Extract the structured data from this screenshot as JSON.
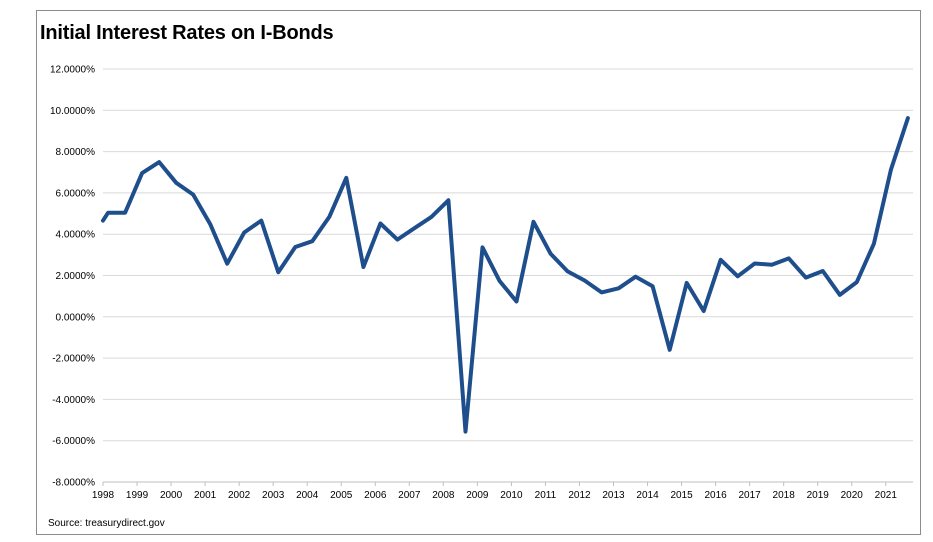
{
  "chart_data": {
    "type": "line",
    "title": "Initial Interest Rates on I-Bonds",
    "source": "Source: treasurydirect.gov",
    "xlabel": "",
    "ylabel": "",
    "ylim": [
      -0.08,
      0.12
    ],
    "xlim": [
      1998.0,
      2021.8
    ],
    "grid": true,
    "legend": "none",
    "colors": {
      "line": "#1f4e8c",
      "grid": "#d9d9d9",
      "axis": "#bfbfbf"
    },
    "y_ticks": [
      {
        "value": 0.12,
        "label": "12.0000%"
      },
      {
        "value": 0.1,
        "label": "10.0000%"
      },
      {
        "value": 0.08,
        "label": "8.0000%"
      },
      {
        "value": 0.06,
        "label": "6.0000%"
      },
      {
        "value": 0.04,
        "label": "4.0000%"
      },
      {
        "value": 0.02,
        "label": "2.0000%"
      },
      {
        "value": 0.0,
        "label": "0.0000%"
      },
      {
        "value": -0.02,
        "label": "-2.0000%"
      },
      {
        "value": -0.04,
        "label": "-4.0000%"
      },
      {
        "value": -0.06,
        "label": "-6.0000%"
      },
      {
        "value": -0.08,
        "label": "-8.0000%"
      }
    ],
    "x_ticks": [
      {
        "value": 1998,
        "label": "1998"
      },
      {
        "value": 1999,
        "label": "1999"
      },
      {
        "value": 2000,
        "label": "2000"
      },
      {
        "value": 2001,
        "label": "2001"
      },
      {
        "value": 2002,
        "label": "2002"
      },
      {
        "value": 2003,
        "label": "2003"
      },
      {
        "value": 2004,
        "label": "2004"
      },
      {
        "value": 2005,
        "label": "2005"
      },
      {
        "value": 2006,
        "label": "2006"
      },
      {
        "value": 2007,
        "label": "2007"
      },
      {
        "value": 2008,
        "label": "2008"
      },
      {
        "value": 2009,
        "label": "2009"
      },
      {
        "value": 2010,
        "label": "2010"
      },
      {
        "value": 2011,
        "label": "2011"
      },
      {
        "value": 2012,
        "label": "2012"
      },
      {
        "value": 2013,
        "label": "2013"
      },
      {
        "value": 2014,
        "label": "2014"
      },
      {
        "value": 2015,
        "label": "2015"
      },
      {
        "value": 2016,
        "label": "2016"
      },
      {
        "value": 2017,
        "label": "2017"
      },
      {
        "value": 2018,
        "label": "2018"
      },
      {
        "value": 2019,
        "label": "2019"
      },
      {
        "value": 2020,
        "label": "2020"
      },
      {
        "value": 2021,
        "label": "2021"
      }
    ],
    "series": [
      {
        "x": [
          1998.0,
          1998.15,
          1998.65,
          1999.15,
          1999.65,
          2000.15,
          2000.65,
          2001.15,
          2001.65,
          2002.15,
          2002.65,
          2003.15,
          2003.65,
          2004.15,
          2004.65,
          2005.15,
          2005.65,
          2006.15,
          2006.65,
          2007.15,
          2007.65,
          2008.15,
          2008.65,
          2009.15,
          2009.65,
          2010.15,
          2010.65,
          2011.15,
          2011.65,
          2012.15,
          2012.65,
          2013.15,
          2013.65,
          2014.15,
          2014.65,
          2015.15,
          2015.65,
          2016.15,
          2016.65,
          2017.15,
          2017.65,
          2018.15,
          2018.65,
          2019.15,
          2019.65,
          2020.15,
          2020.65,
          2021.15,
          2021.65
        ],
        "y": [
          0.0466,
          0.0504,
          0.0504,
          0.0696,
          0.0749,
          0.0649,
          0.0592,
          0.0449,
          0.0257,
          0.0408,
          0.0466,
          0.0216,
          0.0338,
          0.0366,
          0.0484,
          0.0673,
          0.0241,
          0.0452,
          0.0374,
          0.0429,
          0.0484,
          0.0564,
          -0.0556,
          0.0336,
          0.0174,
          0.0074,
          0.046,
          0.0306,
          0.022,
          0.0176,
          0.0118,
          0.0138,
          0.0194,
          0.0148,
          -0.016,
          0.0164,
          0.0028,
          0.0276,
          0.0196,
          0.0258,
          0.0252,
          0.0283,
          0.019,
          0.0222,
          0.0106,
          0.0168,
          0.0354,
          0.0712,
          0.0962
        ]
      }
    ]
  }
}
